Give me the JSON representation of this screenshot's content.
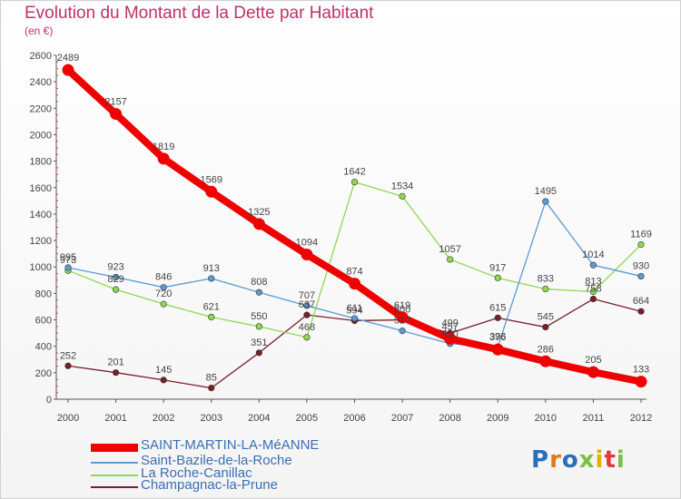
{
  "title": "Evolution du Montant de la Dette par Habitant",
  "subtitle": "(en €)",
  "logo": "Proxiti",
  "chart_data": {
    "type": "line",
    "title": "Evolution du Montant de la Dette par Habitant",
    "subtitle": "(en €)",
    "xlabel": "",
    "ylabel": "",
    "x": [
      "2000",
      "2001",
      "2002",
      "2003",
      "2004",
      "2005",
      "2006",
      "2007",
      "2008",
      "2009",
      "2010",
      "2011",
      "2012"
    ],
    "ylim": [
      0,
      2600
    ],
    "yticks": [
      0,
      200,
      400,
      600,
      800,
      1000,
      1200,
      1400,
      1600,
      1800,
      2000,
      2200,
      2400,
      2600
    ],
    "grid": false,
    "legend_position": "bottom-left",
    "series": [
      {
        "name": "SAINT-MARTIN-LA-MéANNE",
        "color": "#ee0000",
        "values": [
          2489,
          2157,
          1819,
          1569,
          1325,
          1094,
          874,
          619,
          457,
          376,
          286,
          205,
          133
        ]
      },
      {
        "name": "Saint-Bazile-de-la-Roche",
        "color": "#5b9bd5",
        "values": [
          995,
          923,
          846,
          913,
          808,
          707,
          611,
          517,
          420,
          396,
          1495,
          1014,
          930
        ]
      },
      {
        "name": "La Roche-Canillac",
        "color": "#8fd850",
        "values": [
          973,
          829,
          720,
          621,
          550,
          468,
          1642,
          1534,
          1057,
          917,
          833,
          813,
          1169
        ]
      },
      {
        "name": "Champagnac-la-Prune",
        "color": "#7a1e28",
        "values": [
          252,
          201,
          145,
          85,
          351,
          637,
          594,
          600,
          499,
          615,
          545,
          758,
          664
        ]
      }
    ]
  }
}
